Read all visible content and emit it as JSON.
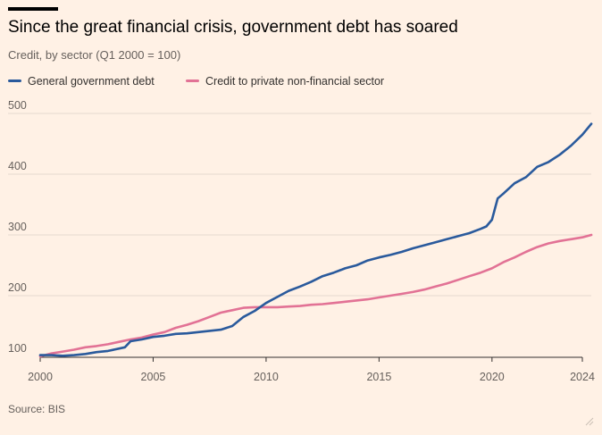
{
  "title": "Since the great financial crisis, government debt has soared",
  "subtitle": "Credit, by sector (Q1 2000 = 100)",
  "source": "Source: BIS",
  "legend": [
    {
      "label": "General government debt",
      "color": "#2a5a9c"
    },
    {
      "label": "Credit to private non-financial sector",
      "color": "#e27295"
    }
  ],
  "chart_data": {
    "type": "line",
    "title": "Since the great financial crisis, government debt has soared",
    "subtitle": "Credit, by sector (Q1 2000 = 100)",
    "xlim": [
      2000,
      2024
    ],
    "ylim": [
      100,
      500
    ],
    "x_ticks": [
      2000,
      2005,
      2010,
      2015,
      2020,
      2024
    ],
    "y_ticks": [
      100,
      200,
      300,
      400,
      500
    ],
    "grid": "horizontal",
    "legend_position": "top-left",
    "series": [
      {
        "name": "General government debt",
        "color": "#2a5a9c",
        "x": [
          2000,
          2000.5,
          2001,
          2001.5,
          2002,
          2002.5,
          2003,
          2003.5,
          2003.75,
          2004,
          2004.5,
          2005,
          2005.5,
          2006,
          2006.5,
          2007,
          2007.5,
          2008,
          2008.5,
          2009,
          2009.5,
          2010,
          2010.5,
          2011,
          2011.5,
          2012,
          2012.5,
          2013,
          2013.5,
          2014,
          2014.5,
          2015,
          2015.5,
          2016,
          2016.5,
          2017,
          2017.5,
          2018,
          2018.5,
          2019,
          2019.5,
          2019.75,
          2020,
          2020.25,
          2020.5,
          2021,
          2021.5,
          2022,
          2022.5,
          2023,
          2023.5,
          2024,
          2024.4
        ],
        "values": [
          102,
          102,
          101,
          102,
          104,
          107,
          109,
          113,
          115,
          125,
          128,
          132,
          134,
          137,
          138,
          140,
          142,
          144,
          150,
          165,
          175,
          188,
          198,
          208,
          215,
          223,
          232,
          238,
          245,
          250,
          258,
          263,
          267,
          272,
          278,
          283,
          288,
          293,
          298,
          303,
          310,
          314,
          325,
          360,
          368,
          385,
          395,
          412,
          420,
          432,
          447,
          465,
          483
        ]
      },
      {
        "name": "Credit to private non-financial sector",
        "color": "#e27295",
        "x": [
          2000,
          2000.5,
          2001,
          2001.5,
          2002,
          2002.5,
          2003,
          2003.5,
          2004,
          2004.5,
          2005,
          2005.5,
          2006,
          2006.5,
          2007,
          2007.5,
          2008,
          2008.5,
          2009,
          2009.5,
          2010,
          2010.5,
          2011,
          2011.5,
          2012,
          2012.5,
          2013,
          2013.5,
          2014,
          2014.5,
          2015,
          2015.5,
          2016,
          2016.5,
          2017,
          2017.5,
          2018,
          2018.5,
          2019,
          2019.5,
          2020,
          2020.5,
          2021,
          2021.5,
          2022,
          2022.5,
          2023,
          2023.5,
          2024,
          2024.4
        ],
        "values": [
          100,
          105,
          108,
          111,
          115,
          117,
          120,
          124,
          128,
          131,
          136,
          140,
          147,
          152,
          158,
          165,
          172,
          176,
          180,
          181,
          181,
          181,
          182,
          183,
          185,
          186,
          188,
          190,
          192,
          194,
          197,
          200,
          203,
          206,
          210,
          215,
          220,
          226,
          232,
          238,
          245,
          255,
          263,
          272,
          280,
          286,
          290,
          293,
          296,
          300
        ]
      }
    ]
  }
}
